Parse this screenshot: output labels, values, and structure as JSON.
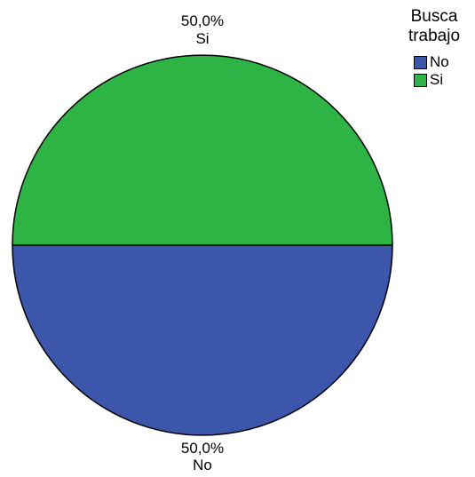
{
  "chart_data": {
    "type": "pie",
    "legend": {
      "title_lines": [
        "Busca",
        "trabajo"
      ],
      "placement": "top-right"
    },
    "slices": [
      {
        "label": "Si",
        "value": 50.0,
        "percent_label": "50,0%",
        "color": "#2db444"
      },
      {
        "label": "No",
        "value": 50.0,
        "percent_label": "50,0%",
        "color": "#3c56ac"
      }
    ],
    "legend_order": [
      "No",
      "Si"
    ],
    "start_angle_deg": 0,
    "direction": "counterclockwise",
    "stroke_color": "#000000"
  }
}
